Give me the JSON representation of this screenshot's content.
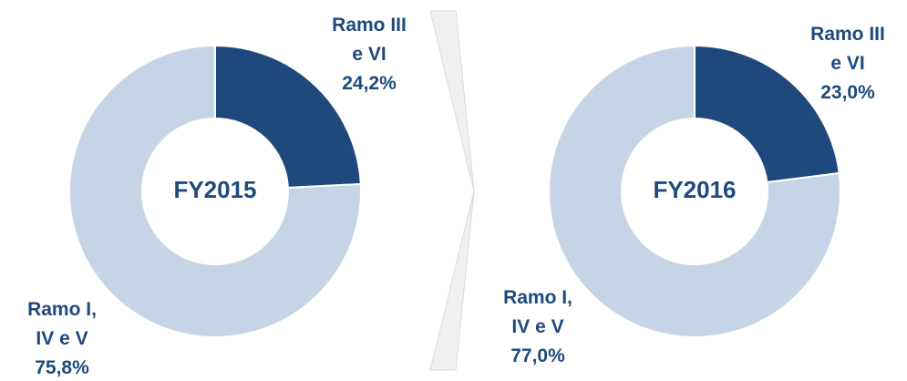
{
  "chart_data": [
    {
      "type": "donut",
      "title": "FY2015",
      "categories": [
        "Ramo III e VI",
        "Ramo I, IV e V"
      ],
      "values": [
        24.2,
        75.8
      ],
      "value_labels": [
        "24,2%",
        "75,8%"
      ],
      "colors": [
        "#1f497d",
        "#c6d5e5"
      ]
    },
    {
      "type": "donut",
      "title": "FY2016",
      "categories": [
        "Ramo III e VI",
        "Ramo I, IV e V"
      ],
      "values": [
        23.0,
        77.0
      ],
      "value_labels": [
        "23,0%",
        "77,0%"
      ],
      "colors": [
        "#1f497d",
        "#c6d5e5"
      ]
    }
  ]
}
